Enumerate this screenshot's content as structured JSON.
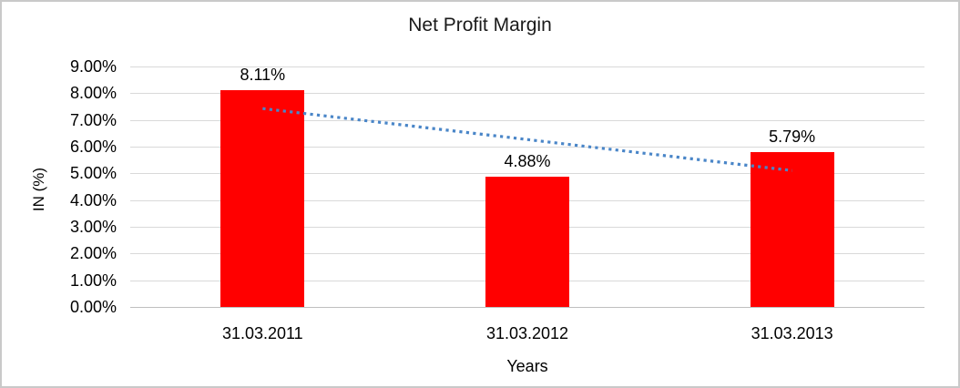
{
  "chart": {
    "title": "Net Profit Margin"
  },
  "chart_data": {
    "type": "bar",
    "title": "Net Profit Margin",
    "categories": [
      "31.03.2011",
      "31.03.2012",
      "31.03.2013"
    ],
    "values": [
      8.11,
      4.88,
      5.79
    ],
    "data_labels": [
      "8.11%",
      "4.88%",
      "5.79%"
    ],
    "xlabel": "Years",
    "ylabel": "IN (%)",
    "ylim": [
      0,
      9
    ],
    "ytick_step": 1,
    "ytick_labels": [
      "0.00%",
      "1.00%",
      "2.00%",
      "3.00%",
      "4.00%",
      "5.00%",
      "6.00%",
      "7.00%",
      "8.00%",
      "9.00%"
    ],
    "grid": true,
    "legend": "none",
    "bar_color": "#ff0000",
    "gridline_color": "#d9d9d9",
    "trendline": {
      "type": "linear",
      "style": "dotted",
      "color": "#4a86c8",
      "start_value": 7.425,
      "end_value": 5.105
    }
  }
}
